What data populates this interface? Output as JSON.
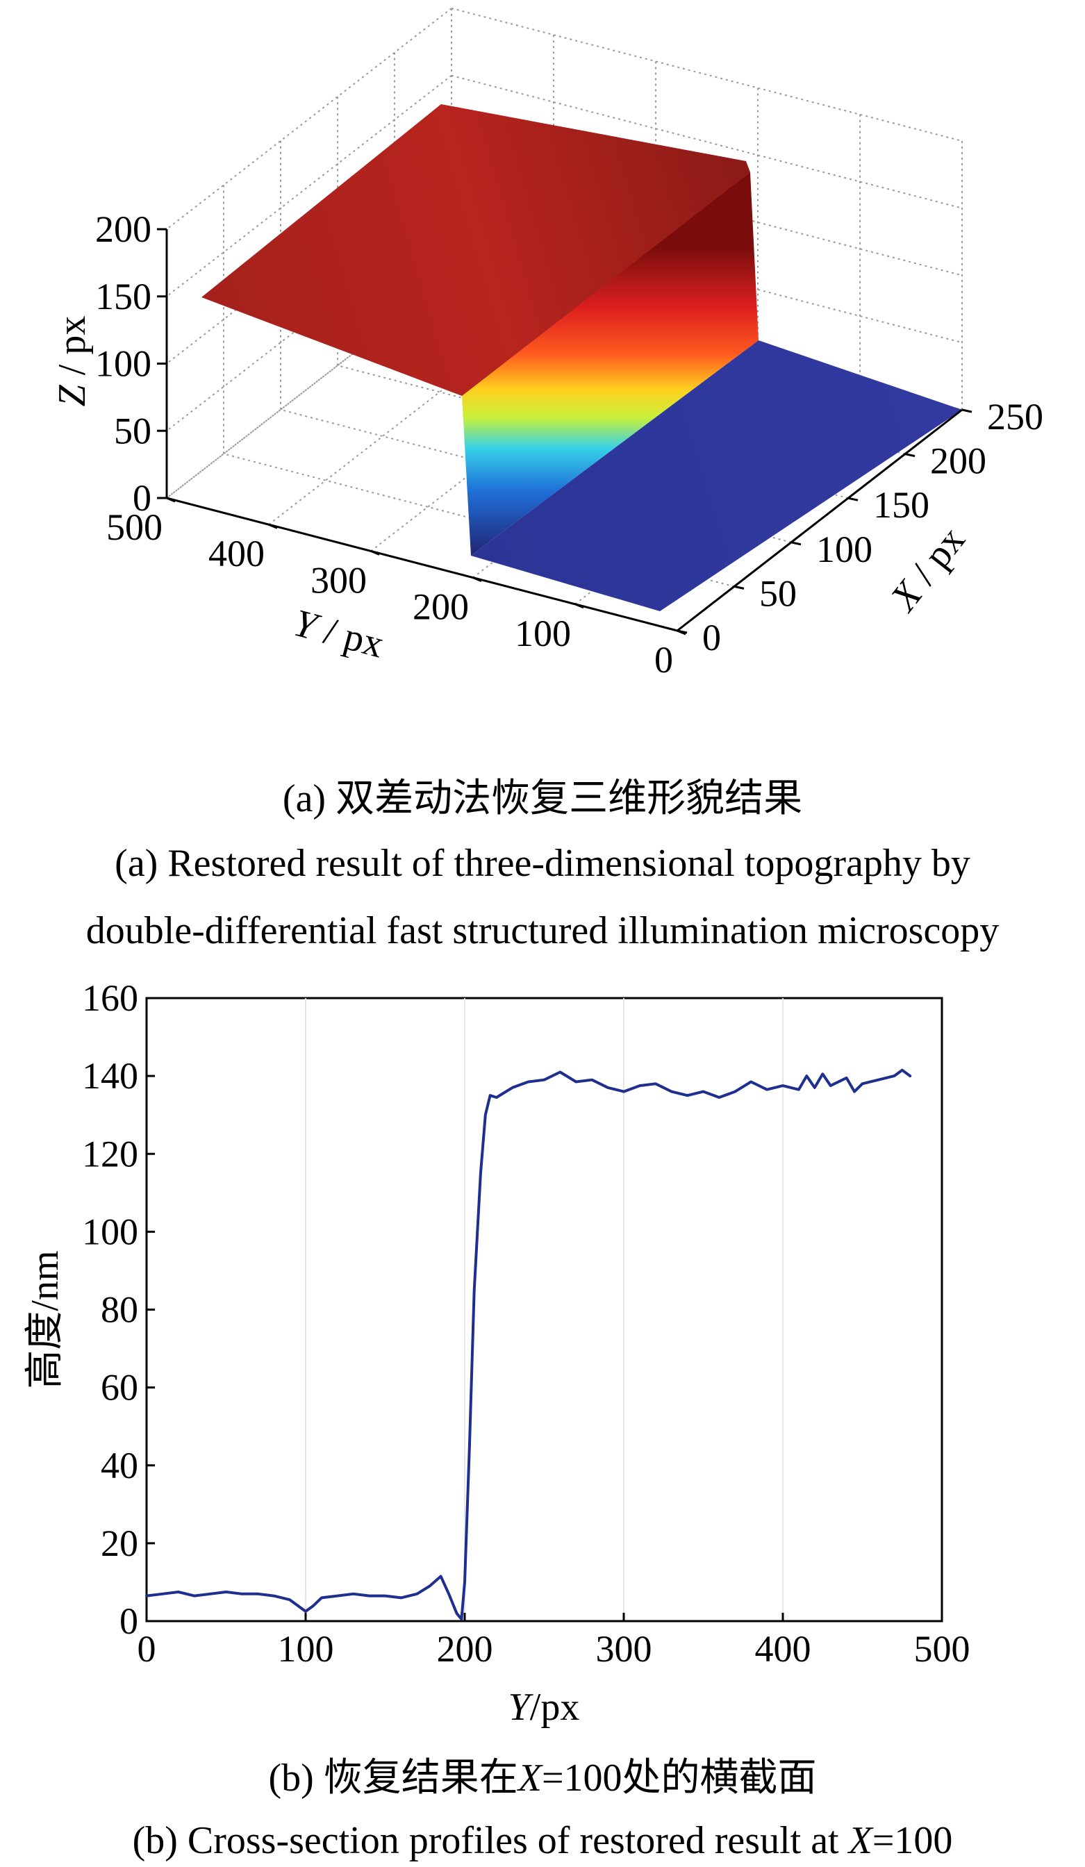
{
  "chart_data": [
    {
      "type": "surface",
      "caption_cn": "(a) 双差动法恢复三维形貌结果",
      "caption_en_1": "(a) Restored result of three-dimensional topography by",
      "caption_en_2": "double-differential fast structured illumination microscopy",
      "zlabel": "Z / px",
      "ylabel": "Y / px",
      "xlabel": "X / px",
      "z_ticks": [
        "0",
        "50",
        "100",
        "150",
        "200"
      ],
      "y_ticks": [
        "0",
        "100",
        "200",
        "300",
        "400",
        "500"
      ],
      "x_ticks": [
        "0",
        "50",
        "100",
        "150",
        "200",
        "250"
      ],
      "xlim": [
        0,
        250
      ],
      "ylim": [
        0,
        500
      ],
      "zlim": [
        0,
        200
      ],
      "step_y": 200,
      "z_low": 5,
      "z_high": 145,
      "grid": true,
      "colormap": "jet"
    },
    {
      "type": "line",
      "caption_cn_pre": "(b) 恢复结果在",
      "caption_cn_var": "X",
      "caption_cn_post": "=100处的横截面",
      "caption_en_pre": "(b) Cross-section profiles of restored result at ",
      "caption_en_var": "X",
      "caption_en_post": "=100",
      "ylabel": "高度/nm",
      "xlabel_var": "Y",
      "xlabel_unit": "/px",
      "x_ticks": [
        "0",
        "100",
        "200",
        "300",
        "400",
        "500"
      ],
      "y_ticks": [
        "0",
        "20",
        "40",
        "60",
        "80",
        "100",
        "120",
        "140",
        "160"
      ],
      "xlim": [
        0,
        500
      ],
      "ylim": [
        0,
        160
      ],
      "series": [
        {
          "color": "#1f2f8f",
          "x": [
            0,
            10,
            20,
            30,
            40,
            50,
            60,
            70,
            80,
            90,
            95,
            100,
            105,
            110,
            120,
            130,
            140,
            150,
            160,
            170,
            178,
            185,
            190,
            195,
            198,
            200,
            203,
            206,
            210,
            213,
            216,
            220,
            230,
            240,
            250,
            260,
            270,
            280,
            290,
            300,
            310,
            320,
            330,
            340,
            350,
            360,
            370,
            380,
            390,
            400,
            410,
            415,
            420,
            425,
            430,
            440,
            445,
            450,
            460,
            470,
            475,
            480
          ],
          "y": [
            6.5,
            7,
            7.5,
            6.5,
            7,
            7.5,
            7,
            7,
            6.5,
            5.5,
            4,
            2.5,
            4,
            6,
            6.5,
            7,
            6.5,
            6.5,
            6,
            7,
            9,
            11.5,
            7,
            2,
            0.5,
            10,
            45,
            85,
            115,
            130,
            135,
            134.5,
            137,
            138.5,
            139,
            141,
            138.5,
            139,
            137,
            136,
            137.5,
            138,
            136,
            135,
            136,
            134.5,
            136,
            138.5,
            136.5,
            137.5,
            136.5,
            140,
            137,
            140.5,
            137.5,
            139.5,
            136,
            138,
            139,
            140,
            141.5,
            140
          ]
        }
      ]
    }
  ]
}
